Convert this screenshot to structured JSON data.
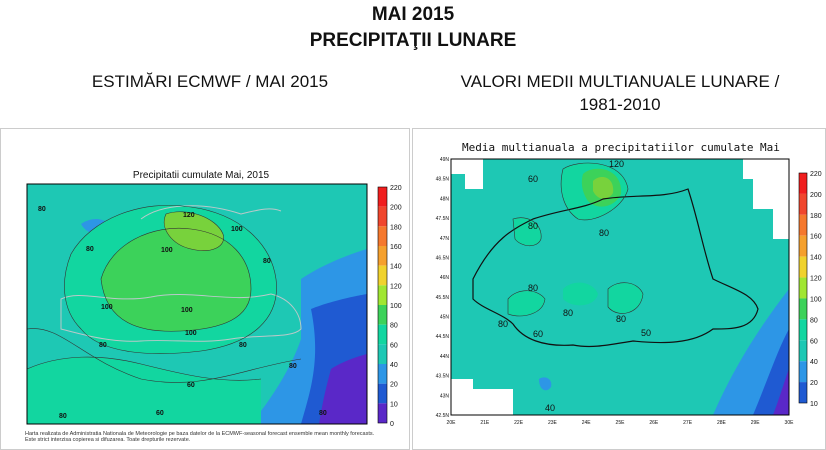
{
  "header": {
    "title_line1": "MAI 2015",
    "title_line2": "PRECIPITAŢII LUNARE",
    "left_caption": "ESTIMĂRI ECMWF / MAI 2015",
    "right_caption_line1": "VALORI MEDII MULTIANUALE LUNARE /",
    "right_caption_line2": "1981-2010"
  },
  "left_map": {
    "title": "Precipitatii cumulate Mai, 2015",
    "colorbar_ticks": [
      "220",
      "200",
      "180",
      "160",
      "140",
      "120",
      "100",
      "80",
      "60",
      "40",
      "20",
      "10",
      "0"
    ],
    "contour_labels": [
      "80",
      "80",
      "120",
      "100",
      "100",
      "80",
      "100",
      "100",
      "100",
      "80",
      "80",
      "60",
      "80",
      "80",
      "60",
      "80"
    ],
    "footnote_line1": "Harta realizata de Administratia Nationala de Meteorologie pe baza datelor de la ECMWF-seasonal forecast ensemble mean monthly forecasts.",
    "footnote_line2": "Este strict interzisa copierea si difuzarea. Toate drepturile rezervate."
  },
  "right_map": {
    "title": "Media multianuala a precipitatiilor cumulate Mai",
    "lat_ticks": [
      "49N",
      "48.5N",
      "48N",
      "47.5N",
      "47N",
      "46.5N",
      "46N",
      "45.5N",
      "45N",
      "44.5N",
      "44N",
      "43.5N",
      "43N",
      "42.5N"
    ],
    "lon_ticks": [
      "20E",
      "21E",
      "22E",
      "23E",
      "24E",
      "25E",
      "26E",
      "27E",
      "28E",
      "29E",
      "30E"
    ],
    "colorbar_ticks": [
      "220",
      "200",
      "180",
      "160",
      "140",
      "120",
      "100",
      "80",
      "60",
      "40",
      "20",
      "10"
    ],
    "contour_labels": [
      "120",
      "60",
      "80",
      "80",
      "80",
      "80",
      "80",
      "80",
      "60",
      "50",
      "40"
    ]
  },
  "colors": {
    "level_60": "#1ec8b4",
    "level_80": "#12d6a0",
    "level_100": "#3cd25a",
    "level_120": "#78d23c",
    "level_40": "#2d96e6",
    "level_20": "#1f5ad2",
    "level_10": "#5a28c8"
  }
}
